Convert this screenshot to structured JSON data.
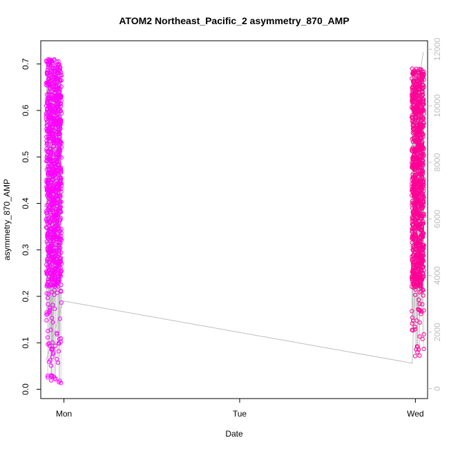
{
  "chart_data": {
    "type": "scatter",
    "title": "ATOM2 Northeast_Pacific_2 asymmetry_870_AMP",
    "xlabel": "Date",
    "ylabel": "asymmetry_870_AMP",
    "x_axis": {
      "kind": "date",
      "ticks": [
        "Mon",
        "Tue",
        "Wed"
      ],
      "range": [
        "Sun 20:50",
        "Wed 01:40"
      ]
    },
    "y_axis_left": {
      "ylim": [
        -0.02,
        0.75
      ],
      "ticks": [
        "0.0",
        "0.1",
        "0.2",
        "0.3",
        "0.4",
        "0.5",
        "0.6",
        "0.7"
      ]
    },
    "y_axis_right": {
      "ylim": [
        -350,
        12300
      ],
      "ticks": [
        "0",
        "2000",
        "4000",
        "6000",
        "8000",
        "10000",
        "12000"
      ],
      "color": "#bebebe",
      "line_color": "#bebebe"
    },
    "series": [
      {
        "color": "#ff00ff",
        "marker": "open-circle",
        "x_range": [
          "Sun 21:35",
          "Sun 23:40"
        ],
        "y_range": [
          0.01,
          0.73
        ],
        "points_approx": 1000
      },
      {
        "color": "#ff0096",
        "marker": "open-circle",
        "x_range": [
          "Tue 23:30",
          "Wed 01:10"
        ],
        "y_range": [
          0.07,
          0.71
        ],
        "points_approx": 1000
      }
    ],
    "line_series": {
      "color": "#bebebe",
      "axis": "right",
      "points": [
        {
          "x": "Sun 21:35",
          "y": 1000
        },
        {
          "x": "Sun 23:55",
          "y": 3100
        },
        {
          "x": "Tue 23:35",
          "y": 900
        },
        {
          "x": "Wed 00:50",
          "y": 11500
        },
        {
          "x": "Wed 01:05",
          "y": 11900
        }
      ]
    },
    "grid": false,
    "legend": "none"
  }
}
